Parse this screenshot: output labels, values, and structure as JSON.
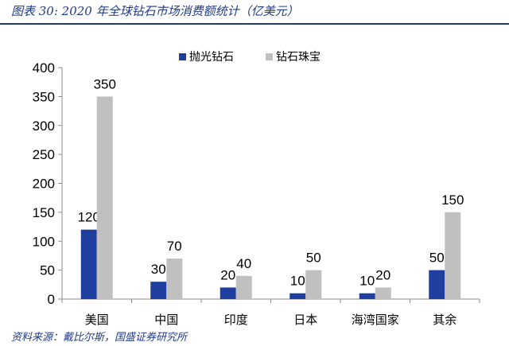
{
  "figure": {
    "title": "图表 30:  2020 年全球钻石市场消费额统计（亿美元）",
    "source": "资料来源：戴比尔斯，国盛证券研究所"
  },
  "colors": {
    "title": "#1f3a8a",
    "series_1": "#1f3fa0",
    "series_2": "#c0c0c0",
    "axis": "#8c8c8c",
    "text": "#000000"
  },
  "chart_data": {
    "type": "bar",
    "categories": [
      "美国",
      "中国",
      "印度",
      "日本",
      "海湾国家",
      "其余"
    ],
    "series": [
      {
        "name": "抛光钻石",
        "values": [
          120,
          30,
          20,
          10,
          10,
          50
        ]
      },
      {
        "name": "钻石珠宝",
        "values": [
          350,
          70,
          40,
          50,
          20,
          150
        ]
      }
    ],
    "ylim": [
      0,
      400
    ],
    "yticks": [
      0,
      50,
      100,
      150,
      200,
      250,
      300,
      350,
      400
    ],
    "data_labels": true,
    "grid": false,
    "legend_position": "top"
  }
}
